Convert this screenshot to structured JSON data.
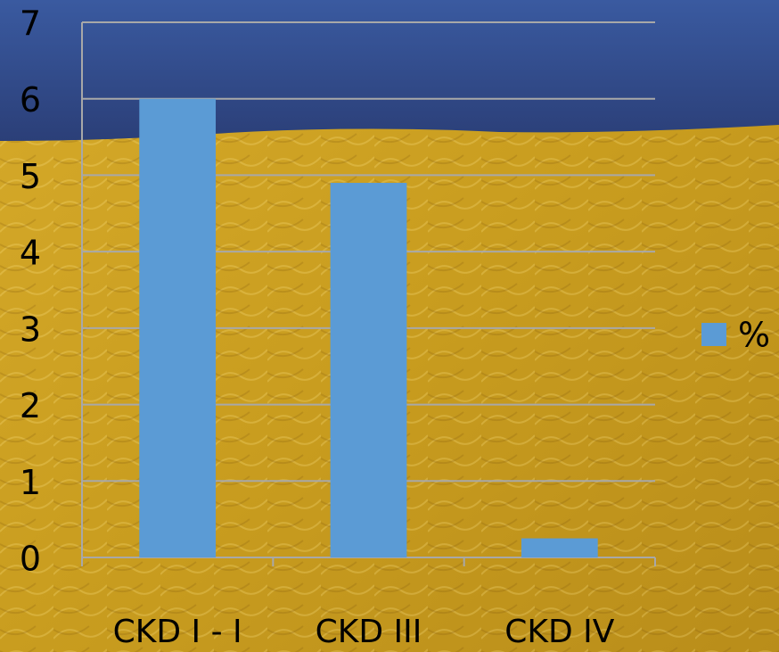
{
  "chart_data": {
    "type": "bar",
    "categories": [
      "CKD I - I",
      "CKD III",
      "CKD IV"
    ],
    "series": [
      {
        "name": "%",
        "color": "#5b9bd5",
        "values": [
          6,
          4.9,
          0.25
        ]
      }
    ],
    "ylim": [
      0,
      7
    ],
    "yticks": [
      0,
      1,
      2,
      3,
      4,
      5,
      6,
      7
    ],
    "grid": true,
    "legend": "right"
  }
}
